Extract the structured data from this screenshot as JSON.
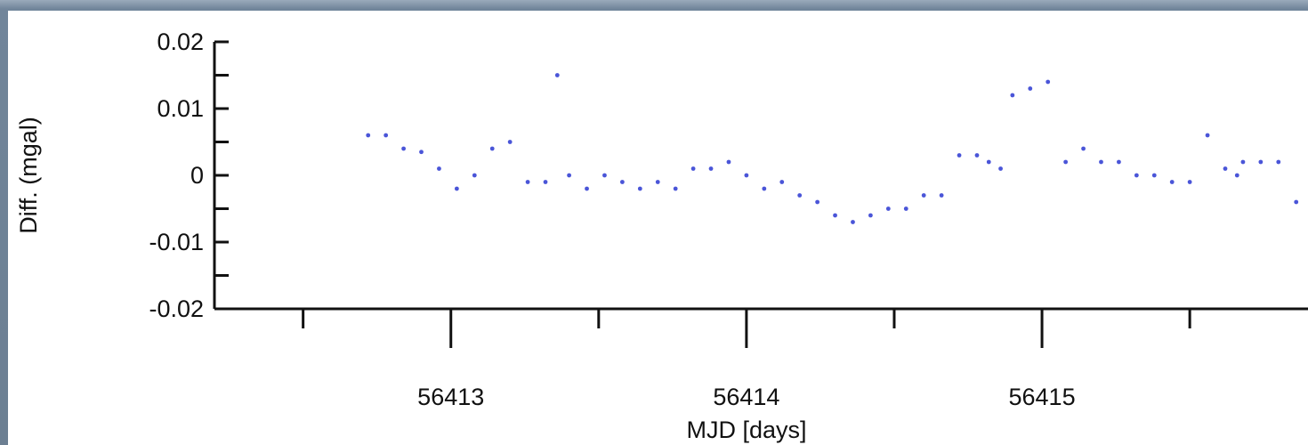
{
  "chart_data": {
    "type": "scatter",
    "title": "",
    "xlabel": "MJD [days]",
    "ylabel": "Diff. (mgal)",
    "xlim": [
      56412.2,
      56415.9
    ],
    "ylim": [
      -0.02,
      0.02
    ],
    "x_ticks": [
      56413,
      56414,
      56415
    ],
    "x_tick_labels": [
      "56413",
      "56414",
      "56415"
    ],
    "y_ticks": [
      -0.02,
      -0.01,
      0,
      0.01,
      0.02
    ],
    "y_tick_labels": [
      "-0.02",
      "-0.01",
      "0",
      "0.01",
      "0.02"
    ],
    "grid": false,
    "marker_color": "#4a55d8",
    "series": [
      {
        "name": "",
        "x": [
          56412.72,
          56412.78,
          56412.84,
          56412.9,
          56412.96,
          56413.02,
          56413.08,
          56413.14,
          56413.2,
          56413.26,
          56413.32,
          56413.36,
          56413.4,
          56413.46,
          56413.52,
          56413.58,
          56413.64,
          56413.7,
          56413.76,
          56413.82,
          56413.88,
          56413.94,
          56414.0,
          56414.06,
          56414.12,
          56414.18,
          56414.24,
          56414.3,
          56414.36,
          56414.42,
          56414.48,
          56414.54,
          56414.6,
          56414.66,
          56414.72,
          56414.78,
          56414.82,
          56414.86,
          56414.9,
          56414.96,
          56415.02,
          56415.08,
          56415.14,
          56415.2,
          56415.26,
          56415.32,
          56415.38,
          56415.44,
          56415.5,
          56415.56,
          56415.62,
          56415.66,
          56415.68,
          56415.74,
          56415.8,
          56415.86
        ],
        "y": [
          0.006,
          0.006,
          0.004,
          0.0035,
          0.001,
          -0.002,
          0.0,
          0.004,
          0.005,
          -0.001,
          -0.001,
          0.015,
          0.0,
          -0.002,
          0.0,
          -0.001,
          -0.002,
          -0.001,
          -0.002,
          0.001,
          0.001,
          0.002,
          0.0,
          -0.002,
          -0.001,
          -0.003,
          -0.004,
          -0.006,
          -0.007,
          -0.006,
          -0.005,
          -0.005,
          -0.003,
          -0.003,
          0.003,
          0.003,
          0.002,
          0.001,
          0.012,
          0.013,
          0.014,
          0.002,
          0.004,
          0.002,
          0.002,
          0.0,
          0.0,
          -0.001,
          -0.001,
          0.006,
          0.001,
          0.0,
          0.002,
          0.002,
          0.002,
          -0.004
        ]
      }
    ]
  }
}
